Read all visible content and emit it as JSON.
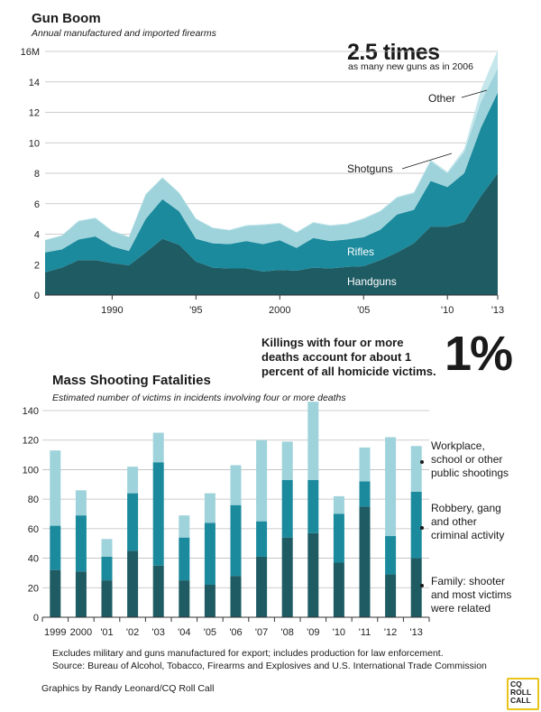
{
  "chart_data": [
    {
      "type": "area",
      "title": "Gun Boom",
      "subtitle": "Annual manufactured and imported firearms",
      "x": [
        1986,
        1987,
        1988,
        1989,
        1990,
        1991,
        1992,
        1993,
        1994,
        1995,
        1996,
        1997,
        1998,
        1999,
        2000,
        2001,
        2002,
        2003,
        2004,
        2005,
        2006,
        2007,
        2008,
        2009,
        2010,
        2011,
        2012,
        2013
      ],
      "xticks": [
        "1990",
        "'95",
        "2000",
        "'05",
        "'10",
        "'13"
      ],
      "xtick_years": [
        1990,
        1995,
        2000,
        2005,
        2010,
        2013
      ],
      "yticks": [
        "0",
        "2",
        "4",
        "6",
        "8",
        "10",
        "12",
        "14",
        "16M"
      ],
      "ylim": [
        0,
        16
      ],
      "series": [
        {
          "name": "Handguns",
          "values": [
            1.5,
            1.8,
            2.3,
            2.3,
            2.1,
            1.95,
            2.8,
            3.7,
            3.3,
            2.2,
            1.8,
            1.75,
            1.75,
            1.55,
            1.65,
            1.6,
            1.8,
            1.75,
            1.85,
            1.9,
            2.3,
            2.8,
            3.4,
            4.5,
            4.5,
            4.8,
            6.5,
            8.0
          ]
        },
        {
          "name": "Rifles",
          "values": [
            1.3,
            1.2,
            1.35,
            1.55,
            1.1,
            0.95,
            2.2,
            2.6,
            2.2,
            1.5,
            1.6,
            1.6,
            1.8,
            1.8,
            1.95,
            1.5,
            1.95,
            1.8,
            1.8,
            1.9,
            2.0,
            2.5,
            2.2,
            3.0,
            2.6,
            3.2,
            4.5,
            5.3
          ]
        },
        {
          "name": "Shotguns",
          "values": [
            0.8,
            0.9,
            1.2,
            1.2,
            1.0,
            0.9,
            1.6,
            1.4,
            1.2,
            1.3,
            1.0,
            0.9,
            1.0,
            1.25,
            1.1,
            1.0,
            1.0,
            1.0,
            1.0,
            1.2,
            1.2,
            1.1,
            1.1,
            1.3,
            0.9,
            1.4,
            1.7,
            1.6
          ]
        },
        {
          "name": "Other",
          "values": [
            0.03,
            0.03,
            0.04,
            0.04,
            0.04,
            0.04,
            0.04,
            0.04,
            0.04,
            0.04,
            0.04,
            0.04,
            0.05,
            0.05,
            0.05,
            0.05,
            0.05,
            0.05,
            0.05,
            0.05,
            0.05,
            0.06,
            0.06,
            0.1,
            0.1,
            0.2,
            0.8,
            1.2
          ]
        }
      ],
      "colors": [
        "#1e5b63",
        "#1b8a9d",
        "#9fd3db",
        "#c5e7ec"
      ],
      "annotation_value": "2.5 times",
      "annotation_text": "as many new guns as in 2006"
    },
    {
      "type": "bar",
      "stacked": true,
      "title": "Mass Shooting Fatalities",
      "subtitle": "Estimated number of victims in incidents involving four or more deaths",
      "categories": [
        "1999",
        "2000",
        "'01",
        "'02",
        "'03",
        "'04",
        "'05",
        "'06",
        "'07",
        "'08",
        "'09",
        "'10",
        "'11",
        "'12",
        "'13"
      ],
      "ylim": [
        0,
        140
      ],
      "yticks": [
        "0",
        "20",
        "40",
        "60",
        "80",
        "100",
        "120",
        "140"
      ],
      "series": [
        {
          "name": "Family: shooter and most victims were related",
          "values": [
            32,
            31,
            25,
            45,
            35,
            25,
            22,
            28,
            41,
            54,
            57,
            37,
            75,
            29,
            40
          ]
        },
        {
          "name": "Robbery, gang and other criminal activity",
          "values": [
            30,
            38,
            16,
            39,
            70,
            29,
            42,
            48,
            24,
            39,
            36,
            33,
            17,
            26,
            45
          ]
        },
        {
          "name": "Workplace, school or other public shootings",
          "values": [
            51,
            17,
            12,
            18,
            20,
            15,
            20,
            27,
            55,
            26,
            53,
            12,
            23,
            67,
            31
          ]
        }
      ],
      "colors": [
        "#1e5b63",
        "#1b8a9d",
        "#9fd3db"
      ]
    }
  ],
  "legend2": {
    "workplace": [
      "Workplace,",
      "school or other",
      "public shootings"
    ],
    "robbery": [
      "Robbery, gang",
      "and other",
      "criminal activity"
    ],
    "family": [
      "Family: shooter",
      "and most victims",
      "were related"
    ]
  },
  "callout_text": "Killings with four or more deaths account for about 1 percent of all homicide victims.",
  "callout_value": "1%",
  "footnote": "Excludes military and guns manufactured for export; includes production for law enforcement.",
  "source": "Source: Bureau of Alcohol, Tobacco, Firearms and Explosives and U.S. International Trade Commission",
  "credit": "Graphics by Randy Leonard/CQ Roll Call",
  "logo": [
    "CQ",
    "ROLL",
    "CALL"
  ]
}
